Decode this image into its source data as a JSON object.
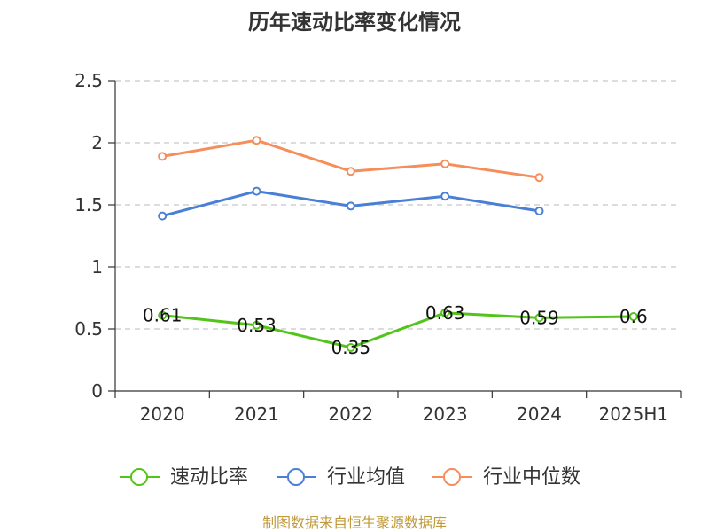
{
  "title": "历年速动比率变化情况",
  "source": "制图数据来自恒生聚源数据库",
  "colors": {
    "quick_ratio": "#52c41a",
    "industry_avg": "#4a7fd6",
    "industry_median": "#f58e5a",
    "source_text": "#c09a3a"
  },
  "chart_data": {
    "type": "line",
    "title": "历年速动比率变化情况",
    "categories": [
      "2020",
      "2021",
      "2022",
      "2023",
      "2024",
      "2025H1"
    ],
    "ylim": [
      0,
      2.5
    ],
    "yticks": [
      "0",
      "0.5",
      "1",
      "1.5",
      "2",
      "2.5"
    ],
    "grid": true,
    "legend_position": "bottom",
    "series": [
      {
        "name": "速动比率",
        "values": [
          0.61,
          0.53,
          0.35,
          0.63,
          0.59,
          0.6
        ],
        "labels": [
          "0.61",
          "0.53",
          "0.35",
          "0.63",
          "0.59",
          "0.6"
        ]
      },
      {
        "name": "行业均值",
        "values": [
          1.41,
          1.61,
          1.49,
          1.57,
          1.45,
          null
        ]
      },
      {
        "name": "行业中位数",
        "values": [
          1.89,
          2.02,
          1.77,
          1.83,
          1.72,
          null
        ]
      }
    ]
  }
}
